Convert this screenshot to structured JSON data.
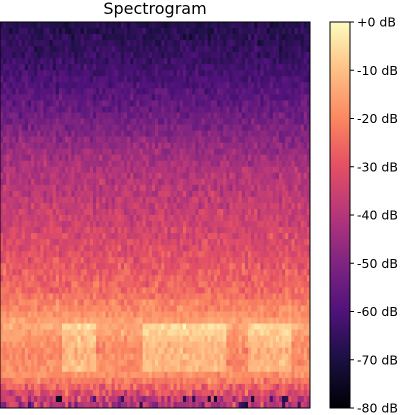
{
  "chart_data": {
    "type": "heatmap",
    "title": "Spectrogram",
    "colormap": "magma",
    "colorbar": {
      "range": [
        -80,
        0
      ],
      "ticks": [
        0,
        -10,
        -20,
        -30,
        -40,
        -50,
        -60,
        -70,
        -80
      ],
      "tick_labels": [
        "+0 dB",
        "-10 dB",
        "-20 dB",
        "-30 dB",
        "-40 dB",
        "-50 dB",
        "-60 dB",
        "-70 dB",
        "-80 dB"
      ]
    },
    "band_profile_db": [
      {
        "row_from_top": 0,
        "mean_db": -68,
        "spread": 7
      },
      {
        "row_from_top": 8,
        "mean_db": -62,
        "spread": 7
      },
      {
        "row_from_top": 16,
        "mean_db": -52,
        "spread": 8
      },
      {
        "row_from_top": 22,
        "mean_db": -43,
        "spread": 8
      },
      {
        "row_from_top": 28,
        "mean_db": -38,
        "spread": 9
      },
      {
        "row_from_top": 36,
        "mean_db": -32,
        "spread": 9
      },
      {
        "row_from_top": 44,
        "mean_db": -25,
        "spread": 8
      },
      {
        "row_from_top": 50,
        "mean_db": -14,
        "spread": 6
      },
      {
        "row_from_top": 54,
        "mean_db": -20,
        "spread": 7
      },
      {
        "row_from_top": 58,
        "mean_db": -18,
        "spread": 6
      },
      {
        "row_from_top": 63,
        "mean_db": -40,
        "spread": 20
      }
    ],
    "grid": false
  }
}
